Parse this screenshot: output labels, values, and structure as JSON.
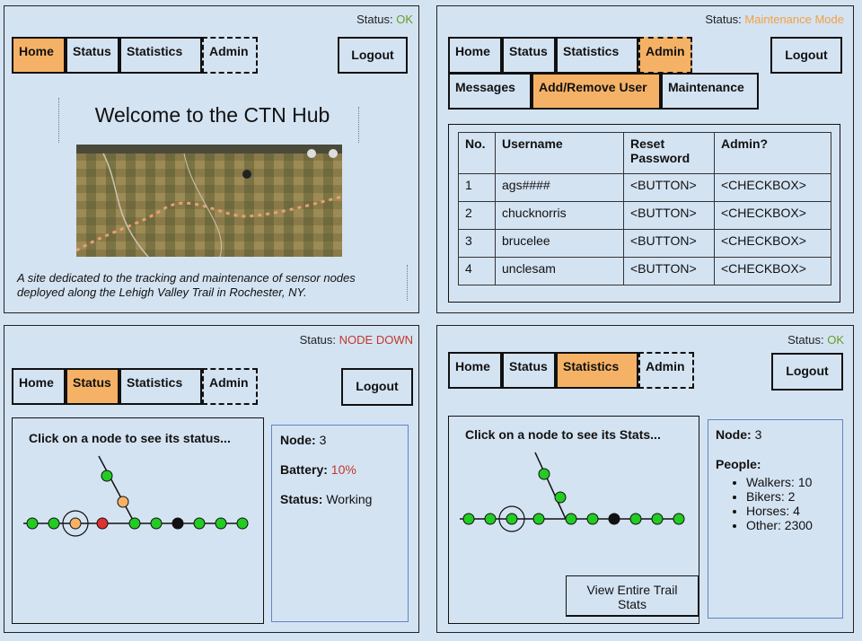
{
  "colors": {
    "background": "#d4e3f2",
    "active_tab": "#f5b266",
    "ok": "#6a9a2a",
    "maintenance": "#f5a040",
    "node_down": "#c0392b",
    "battery": "#c0392b",
    "node_green": "#22cc22",
    "node_orange": "#f5b266",
    "node_red": "#e03030",
    "node_black": "#111111"
  },
  "home": {
    "status_label": "Status:",
    "status_value": "OK",
    "tabs": [
      "Home",
      "Status",
      "Statistics",
      "Admin"
    ],
    "logout": "Logout",
    "title": "Welcome to the CTN Hub",
    "description_line1": "A site dedicated to the tracking and maintenance of sensor nodes",
    "description_line2": "deployed along the Lehigh Valley Trail in Rochester, NY."
  },
  "admin": {
    "status_label": "Status:",
    "status_value": "Maintenance Mode",
    "tabs": [
      "Home",
      "Status",
      "Statistics",
      "Admin"
    ],
    "subtabs": [
      "Messages",
      "Add/Remove User",
      "Maintenance"
    ],
    "logout": "Logout",
    "table": {
      "headers": [
        "No.",
        "Username",
        "Reset Password",
        "Admin?"
      ],
      "rows": [
        [
          "1",
          "ags####",
          "<BUTTON>",
          "<CHECKBOX>"
        ],
        [
          "2",
          "chucknorris",
          "<BUTTON>",
          "<CHECKBOX>"
        ],
        [
          "3",
          "brucelee",
          "<BUTTON>",
          "<CHECKBOX>"
        ],
        [
          "4",
          "unclesam",
          "<BUTTON>",
          "<CHECKBOX>"
        ]
      ]
    }
  },
  "status_page": {
    "status_label": "Status:",
    "status_value": "NODE DOWN",
    "tabs": [
      "Home",
      "Status",
      "Statistics",
      "Admin"
    ],
    "logout": "Logout",
    "prompt": "Click on a node to see its status...",
    "node_label": "Node:",
    "node_value": "3",
    "battery_label": "Battery:",
    "battery_value": "10%",
    "state_label": "Status:",
    "state_value": "Working"
  },
  "stats_page": {
    "status_label": "Status:",
    "status_value": "OK",
    "tabs": [
      "Home",
      "Status",
      "Statistics",
      "Admin"
    ],
    "logout": "Logout",
    "prompt": "Click on a node to see its Stats...",
    "node_label": "Node:",
    "node_value": "3",
    "people_label": "People:",
    "people": [
      "Walkers: 10",
      "Bikers: 2",
      "Horses: 4",
      "Other: 2300"
    ],
    "view_button": "View Entire Trail Stats"
  }
}
